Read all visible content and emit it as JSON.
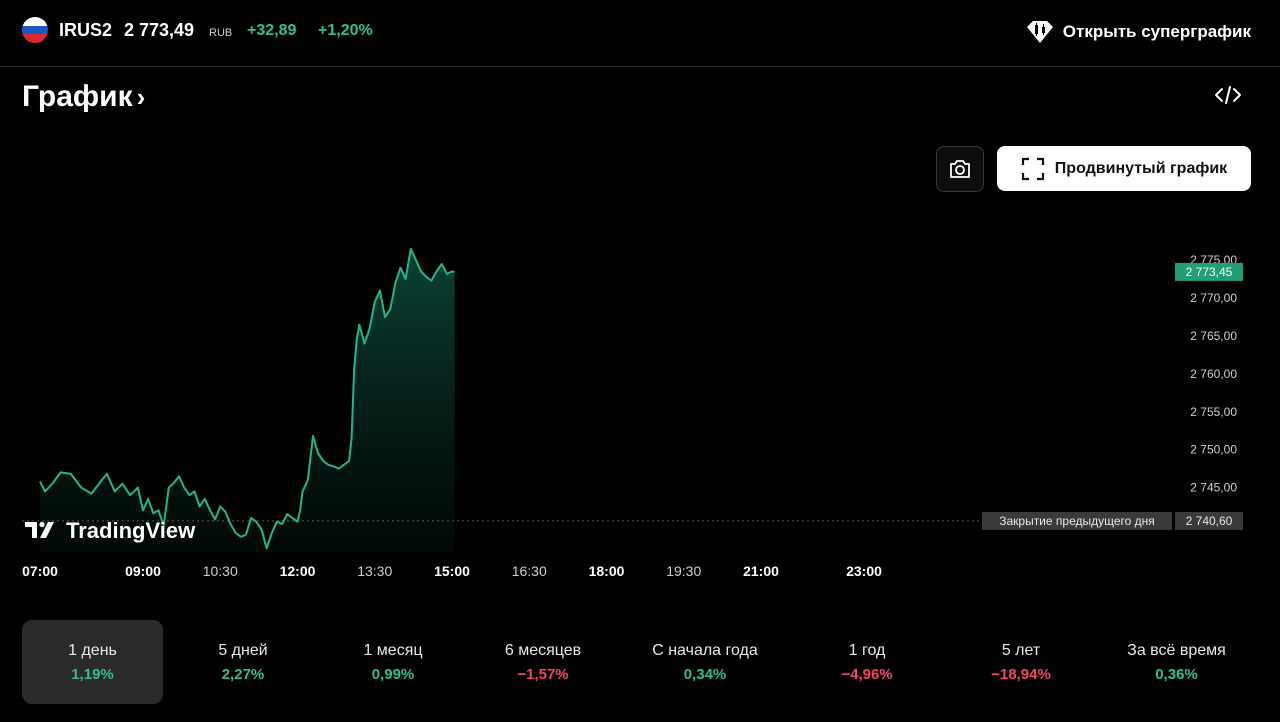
{
  "header": {
    "ticker": "IRUS2",
    "price": "2 773,49",
    "currency": "RUB",
    "change_abs": "+32,89",
    "change_pct": "+1,20%",
    "supergraph_label": "Открыть суперграфик"
  },
  "section": {
    "title": "График"
  },
  "toolbar": {
    "advanced_label": "Продвинутый график"
  },
  "colors": {
    "positive": "#2fbf8f",
    "negative": "#f2475d",
    "line": "#24b58a",
    "price_tag": "#1f9e78"
  },
  "chart_data": {
    "type": "area",
    "x_ticks": [
      "07:00",
      "09:00",
      "10:30",
      "12:00",
      "13:30",
      "15:00",
      "16:30",
      "18:00",
      "19:30",
      "21:00",
      "23:00"
    ],
    "y_ticks": [
      "2 775,00",
      "2 770,00",
      "2 765,00",
      "2 760,00",
      "2 755,00",
      "2 750,00",
      "2 745,00"
    ],
    "ylim": [
      2736.5,
      2777
    ],
    "x_hours": [
      7,
      23
    ],
    "current_price_label": "2 773,45",
    "prev_close": {
      "label": "Закрытие предыдущего дня",
      "value_label": "2 740,60",
      "value": 2740.6
    },
    "watermark": "TradingView",
    "series": [
      {
        "x": [
          7.0,
          7.1,
          7.25,
          7.4,
          7.6,
          7.8,
          8.0,
          8.2,
          8.3,
          8.45,
          8.6,
          8.75,
          8.9,
          9.0,
          9.1,
          9.2,
          9.3,
          9.4,
          9.5,
          9.6,
          9.7,
          9.8,
          9.9,
          10.0,
          10.1,
          10.2,
          10.3,
          10.4,
          10.5,
          10.6,
          10.7,
          10.8,
          10.9,
          11.0,
          11.1,
          11.2,
          11.3,
          11.4,
          11.5,
          11.6,
          11.7,
          11.8,
          11.9,
          12.0,
          12.05,
          12.1,
          12.2,
          12.3,
          12.4,
          12.5,
          12.6,
          12.7,
          12.8,
          12.9,
          13.0,
          13.05,
          13.1,
          13.15,
          13.2,
          13.3,
          13.4,
          13.5,
          13.6,
          13.7,
          13.8,
          13.9,
          14.0,
          14.1,
          14.2,
          14.3,
          14.4,
          14.5,
          14.6,
          14.7,
          14.8,
          14.9,
          15.0,
          15.05
        ],
        "y": [
          2745.8,
          2744.5,
          2745.6,
          2747.0,
          2746.8,
          2745.0,
          2744.2,
          2746.0,
          2746.8,
          2744.5,
          2745.5,
          2744.0,
          2745.0,
          2742.0,
          2743.5,
          2741.6,
          2742.0,
          2740.0,
          2745.0,
          2745.6,
          2746.5,
          2745.0,
          2744.0,
          2744.5,
          2742.5,
          2743.5,
          2742.0,
          2740.8,
          2742.5,
          2741.8,
          2740.2,
          2739.0,
          2738.5,
          2738.8,
          2741.0,
          2740.5,
          2739.5,
          2737.0,
          2739.0,
          2740.5,
          2740.2,
          2741.5,
          2741.0,
          2740.5,
          2742.0,
          2744.5,
          2746.0,
          2751.8,
          2749.5,
          2748.5,
          2748.0,
          2747.8,
          2747.5,
          2748.0,
          2748.5,
          2751.5,
          2760.5,
          2764.5,
          2766.5,
          2764.0,
          2766.0,
          2769.5,
          2771.0,
          2767.5,
          2768.5,
          2772.0,
          2774.0,
          2772.5,
          2776.5,
          2775.0,
          2773.5,
          2772.8,
          2772.3,
          2773.5,
          2774.5,
          2773.2,
          2773.5,
          2773.45
        ]
      }
    ]
  },
  "periods": [
    {
      "label": "1 день",
      "value": "1,19%",
      "sign": "pos",
      "active": true
    },
    {
      "label": "5 дней",
      "value": "2,27%",
      "sign": "pos",
      "active": false
    },
    {
      "label": "1 месяц",
      "value": "0,99%",
      "sign": "pos",
      "active": false
    },
    {
      "label": "6 месяцев",
      "value": "−1,57%",
      "sign": "neg",
      "active": false
    },
    {
      "label": "С начала года",
      "value": "0,34%",
      "sign": "pos",
      "active": false
    },
    {
      "label": "1 год",
      "value": "−4,96%",
      "sign": "neg",
      "active": false
    },
    {
      "label": "5 лет",
      "value": "−18,94%",
      "sign": "neg",
      "active": false
    },
    {
      "label": "За всё время",
      "value": "0,36%",
      "sign": "pos",
      "active": false
    }
  ]
}
